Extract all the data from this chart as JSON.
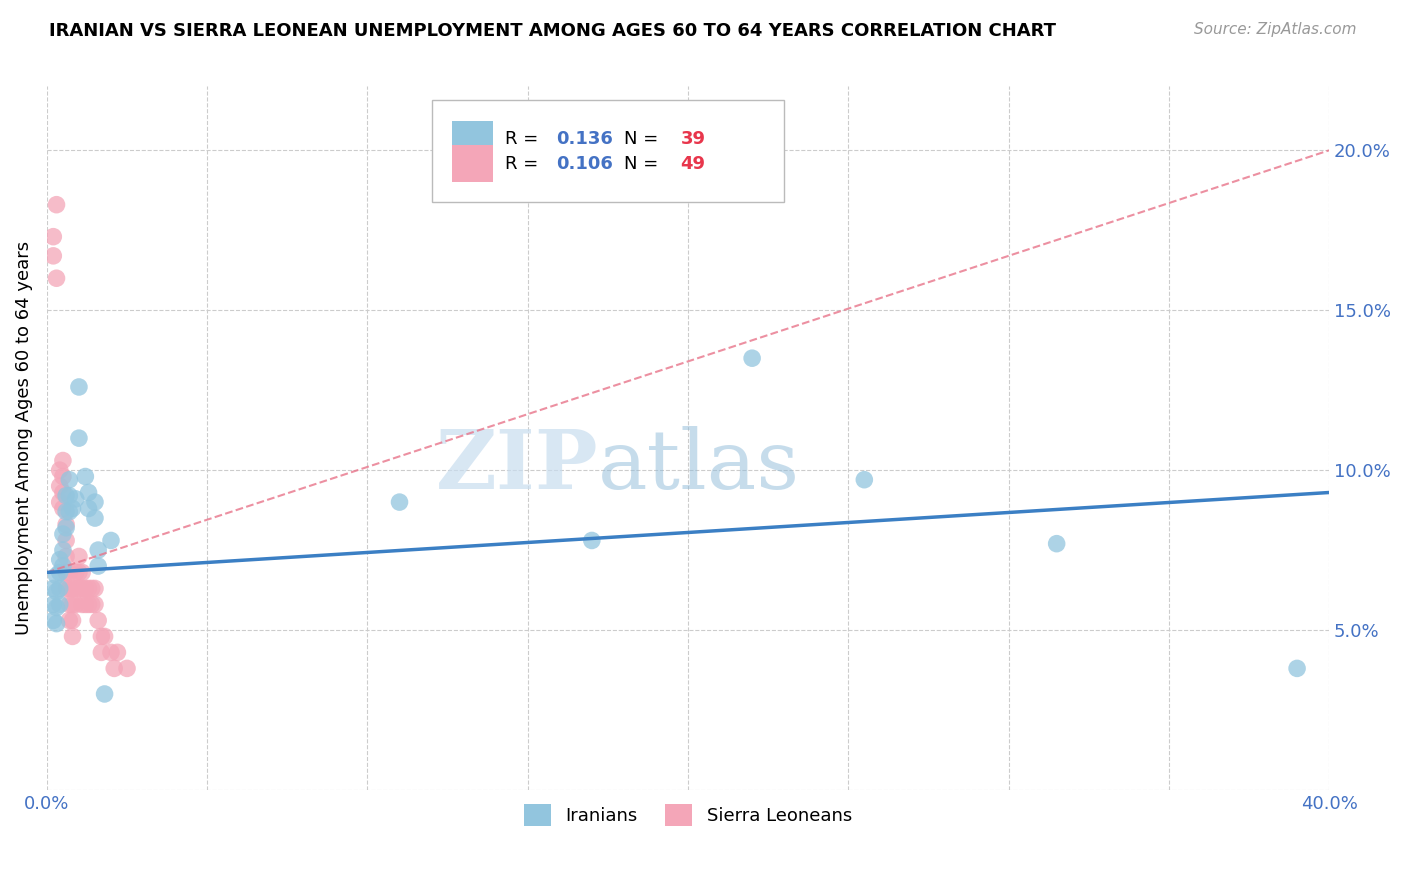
{
  "title": "IRANIAN VS SIERRA LEONEAN UNEMPLOYMENT AMONG AGES 60 TO 64 YEARS CORRELATION CHART",
  "source": "Source: ZipAtlas.com",
  "ylabel": "Unemployment Among Ages 60 to 64 years",
  "xlim": [
    0,
    0.4
  ],
  "ylim": [
    0,
    0.22
  ],
  "blue_R": "0.136",
  "blue_N": "39",
  "pink_R": "0.106",
  "pink_N": "49",
  "blue_color": "#92C5DE",
  "pink_color": "#F4A6B8",
  "blue_line_color": "#3B7FC4",
  "pink_line_color": "#E8748A",
  "legend_label1": "Iranians",
  "legend_label2": "Sierra Leoneans",
  "watermark_zip": "ZIP",
  "watermark_atlas": "atlas",
  "iranians_x": [
    0.002,
    0.002,
    0.002,
    0.003,
    0.003,
    0.003,
    0.003,
    0.004,
    0.004,
    0.004,
    0.004,
    0.005,
    0.005,
    0.005,
    0.006,
    0.006,
    0.006,
    0.007,
    0.007,
    0.007,
    0.008,
    0.009,
    0.01,
    0.01,
    0.012,
    0.013,
    0.013,
    0.015,
    0.015,
    0.016,
    0.016,
    0.018,
    0.02,
    0.11,
    0.17,
    0.22,
    0.255,
    0.315,
    0.39
  ],
  "iranians_y": [
    0.063,
    0.058,
    0.053,
    0.067,
    0.062,
    0.057,
    0.052,
    0.072,
    0.068,
    0.063,
    0.058,
    0.08,
    0.075,
    0.07,
    0.092,
    0.087,
    0.082,
    0.097,
    0.092,
    0.087,
    0.088,
    0.091,
    0.126,
    0.11,
    0.098,
    0.093,
    0.088,
    0.09,
    0.085,
    0.075,
    0.07,
    0.03,
    0.078,
    0.09,
    0.078,
    0.135,
    0.097,
    0.077,
    0.038
  ],
  "sierraleoneans_x": [
    0.002,
    0.002,
    0.003,
    0.003,
    0.004,
    0.004,
    0.004,
    0.005,
    0.005,
    0.005,
    0.005,
    0.006,
    0.006,
    0.006,
    0.006,
    0.006,
    0.007,
    0.007,
    0.007,
    0.007,
    0.008,
    0.008,
    0.008,
    0.008,
    0.009,
    0.009,
    0.009,
    0.01,
    0.01,
    0.01,
    0.011,
    0.011,
    0.011,
    0.012,
    0.012,
    0.013,
    0.013,
    0.014,
    0.014,
    0.015,
    0.015,
    0.016,
    0.017,
    0.017,
    0.018,
    0.02,
    0.021,
    0.022,
    0.025
  ],
  "sierraleoneans_y": [
    0.173,
    0.167,
    0.183,
    0.16,
    0.1,
    0.095,
    0.09,
    0.103,
    0.098,
    0.093,
    0.088,
    0.083,
    0.078,
    0.073,
    0.068,
    0.063,
    0.068,
    0.063,
    0.058,
    0.053,
    0.063,
    0.058,
    0.053,
    0.048,
    0.068,
    0.063,
    0.058,
    0.073,
    0.068,
    0.063,
    0.068,
    0.063,
    0.058,
    0.063,
    0.058,
    0.063,
    0.058,
    0.063,
    0.058,
    0.063,
    0.058,
    0.053,
    0.048,
    0.043,
    0.048,
    0.043,
    0.038,
    0.043,
    0.038
  ]
}
